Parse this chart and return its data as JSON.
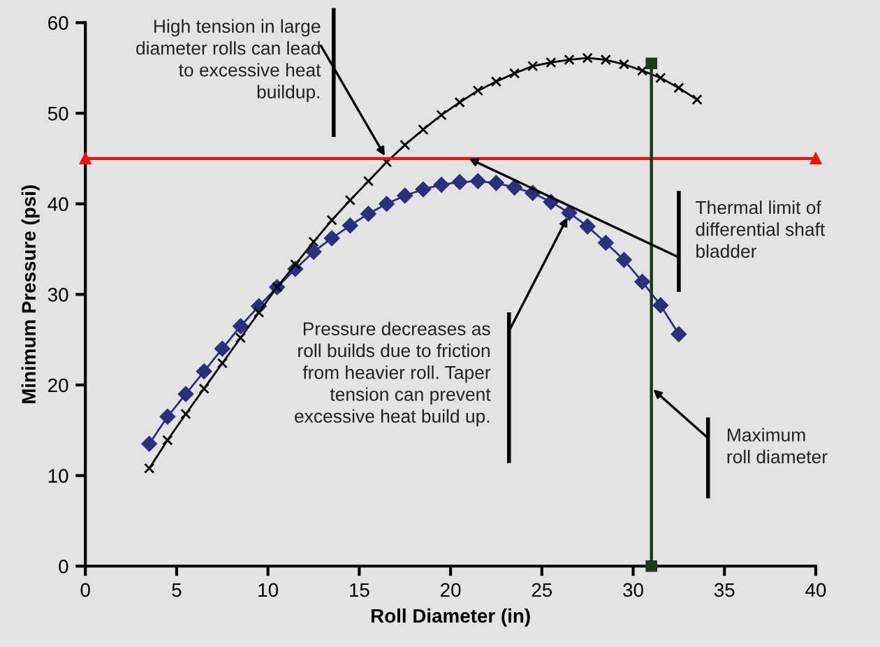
{
  "chart_data": {
    "type": "line",
    "xlabel": "Roll Diameter (in)",
    "ylabel": "Minimum Pressure (psi)",
    "xlim": [
      0,
      40
    ],
    "ylim": [
      0,
      60
    ],
    "xticks": [
      0,
      5,
      10,
      15,
      20,
      25,
      30,
      35,
      40
    ],
    "yticks": [
      0,
      10,
      20,
      30,
      40,
      50,
      60
    ],
    "grid": false,
    "legend": false,
    "series": [
      {
        "color": "#2e2e7e",
        "marker": "diamond",
        "x": [
          3.5,
          4.5,
          5.5,
          6.5,
          7.5,
          8.5,
          9.5,
          10.5,
          11.5,
          12.5,
          13.5,
          14.5,
          15.5,
          16.5,
          17.5,
          18.5,
          19.5,
          20.5,
          21.5,
          22.5,
          23.5,
          24.5,
          25.5,
          26.5,
          27.5,
          28.5,
          29.5,
          30.5,
          31.5,
          32.5
        ],
        "values": [
          13.5,
          16.5,
          19,
          21.5,
          24,
          26.5,
          28.7,
          30.8,
          32.8,
          34.7,
          36.2,
          37.6,
          38.9,
          40,
          40.9,
          41.6,
          42.1,
          42.4,
          42.5,
          42.3,
          41.8,
          41.2,
          40.2,
          39,
          37.5,
          35.7,
          33.8,
          31.4,
          28.8,
          25.6
        ]
      },
      {
        "color": "#000000",
        "marker": "cross",
        "x": [
          3.5,
          4.5,
          5.5,
          6.5,
          7.5,
          8.5,
          9.5,
          10.5,
          11.5,
          12.5,
          13.5,
          14.5,
          15.5,
          16.5,
          17.5,
          18.5,
          19.5,
          20.5,
          21.5,
          22.5,
          23.5,
          24.5,
          25.5,
          26.5,
          27.5,
          28.5,
          29.5,
          30.5,
          31.5,
          32.5,
          33.5
        ],
        "values": [
          10.8,
          13.9,
          16.8,
          19.6,
          22.4,
          25.2,
          28,
          30.8,
          33.3,
          35.8,
          38.2,
          40.4,
          42.5,
          44.6,
          46.5,
          48.2,
          49.8,
          51.2,
          52.5,
          53.5,
          54.4,
          55.2,
          55.6,
          55.9,
          56.1,
          55.9,
          55.4,
          54.7,
          53.9,
          52.8,
          51.5
        ]
      },
      {
        "color": "#ee1111",
        "marker": "triangle",
        "x": [
          0,
          40
        ],
        "values": [
          45,
          45
        ]
      },
      {
        "color": "#1f3a1f",
        "marker": "square",
        "x": [
          31,
          31
        ],
        "values": [
          0,
          55.5
        ]
      }
    ],
    "annotations": [
      {
        "text": "High tension in large\ndiameter rolls can lead\nto excessive heat\nbuildup.",
        "x": 16.4,
        "y": 45.3
      },
      {
        "text": "Thermal limit of\ndifferential shaft\nbladder",
        "x": 21,
        "y": 45
      },
      {
        "text": "Pressure decreases as\nroll builds due to friction\nfrom heavier roll. Taper\ntension can prevent\nexcessive heat build up.",
        "x": 26.4,
        "y": 38.5
      },
      {
        "text": "Maximum\nroll diameter",
        "x": 31.1,
        "y": 19.5
      }
    ]
  }
}
